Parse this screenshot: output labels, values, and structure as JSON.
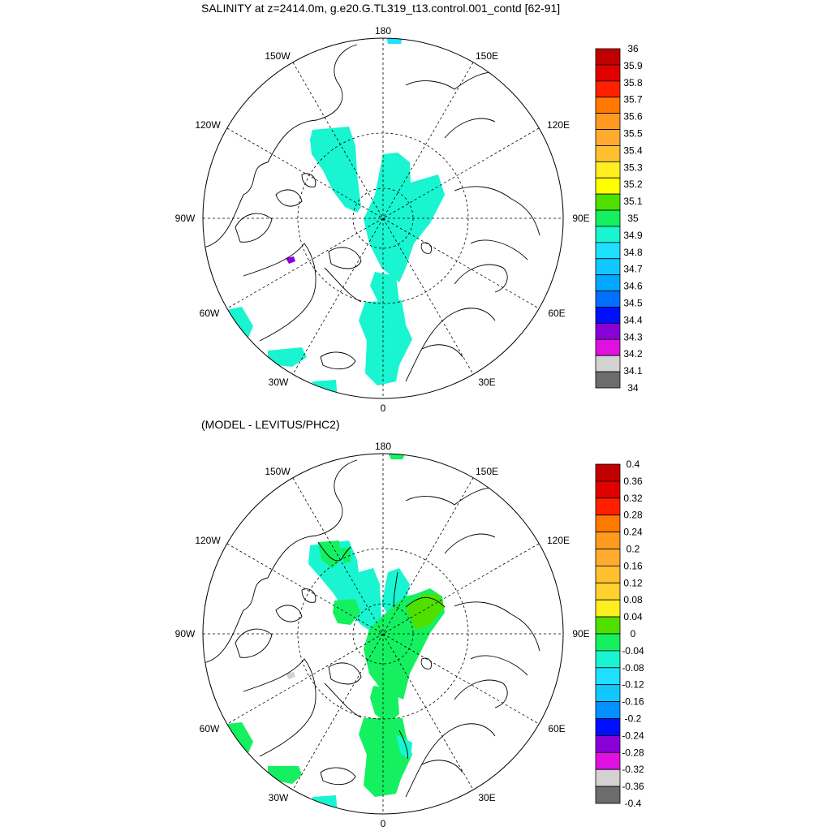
{
  "panels": [
    {
      "title": "SALINITY at z=2414.0m, g.e20.G.TL319_t13.control.001_contd [62-91]",
      "colorbar": {
        "labels": [
          "36",
          "35.9",
          "35.8",
          "35.7",
          "35.6",
          "35.5",
          "35.4",
          "35.3",
          "35.2",
          "35.1",
          "35",
          "34.9",
          "34.8",
          "34.7",
          "34.6",
          "34.5",
          "34.4",
          "34.3",
          "34.2",
          "34.1",
          "34"
        ],
        "colors": [
          "#c00000",
          "#e00000",
          "#ff2000",
          "#ff7800",
          "#ff9a20",
          "#ffaa30",
          "#ffc030",
          "#ffee20",
          "#ffff00",
          "#50e000",
          "#14f060",
          "#18f5d0",
          "#1ee0ff",
          "#10c8ff",
          "#00a8ff",
          "#0070ff",
          "#0010ff",
          "#8a00d8",
          "#e010e0",
          "#d2d2d2",
          "#6c6c6c"
        ]
      },
      "fields": [
        {
          "name": "main-arctic-basin",
          "color": "#18f5d0"
        },
        {
          "name": "fram-strait",
          "color": "#18f5d0"
        },
        {
          "name": "nordic-seas",
          "color": "#18f5d0"
        },
        {
          "name": "labrador-sea",
          "color": "#18f5d0"
        },
        {
          "name": "irminger-sea",
          "color": "#18f5d0"
        },
        {
          "name": "atlantic",
          "color": "#18f5d0"
        },
        {
          "name": "bering-spot",
          "color": "#1ee0ff"
        },
        {
          "name": "baffin-spot",
          "color": "#8a00d8"
        }
      ]
    },
    {
      "title": "(MODEL - LEVITUS/PHC2)",
      "colorbar": {
        "labels": [
          "0.4",
          "0.36",
          "0.32",
          "0.28",
          "0.24",
          "0.2",
          "0.16",
          "0.12",
          "0.08",
          "0.04",
          "0",
          "-0.04",
          "-0.08",
          "-0.12",
          "-0.16",
          "-0.2",
          "-0.24",
          "-0.28",
          "-0.32",
          "-0.36",
          "-0.4"
        ],
        "colors": [
          "#c00000",
          "#e00000",
          "#ff2000",
          "#ff7800",
          "#ff9a20",
          "#ffaa30",
          "#ffc030",
          "#ffd030",
          "#ffee20",
          "#50e000",
          "#14f060",
          "#18f5d0",
          "#1ee0ff",
          "#10c8ff",
          "#0090ff",
          "#0010ff",
          "#8a00d8",
          "#e010e0",
          "#d2d2d2",
          "#6c6c6c"
        ]
      },
      "fields": [
        {
          "name": "canada-basin",
          "color": "#18f5d0"
        },
        {
          "name": "canada-basin-positive",
          "color": "#14f060"
        },
        {
          "name": "eurasian-basin",
          "color": "#14f060"
        },
        {
          "name": "eurasian-basin-high",
          "color": "#50e000"
        },
        {
          "name": "fram-strait",
          "color": "#14f060"
        },
        {
          "name": "nordic-seas",
          "color": "#14f060"
        },
        {
          "name": "labrador-sea",
          "color": "#14f060"
        },
        {
          "name": "irminger-sea",
          "color": "#14f060"
        },
        {
          "name": "atlantic",
          "color": "#18f5d0"
        },
        {
          "name": "bering-spot",
          "color": "#14f060"
        },
        {
          "name": "baffin-spot",
          "color": "#d2d2d2"
        }
      ]
    }
  ],
  "lon_labels": [
    "180",
    "150E",
    "120E",
    "90E",
    "60E",
    "30E",
    "0",
    "30W",
    "60W",
    "90W",
    "120W",
    "150W"
  ]
}
